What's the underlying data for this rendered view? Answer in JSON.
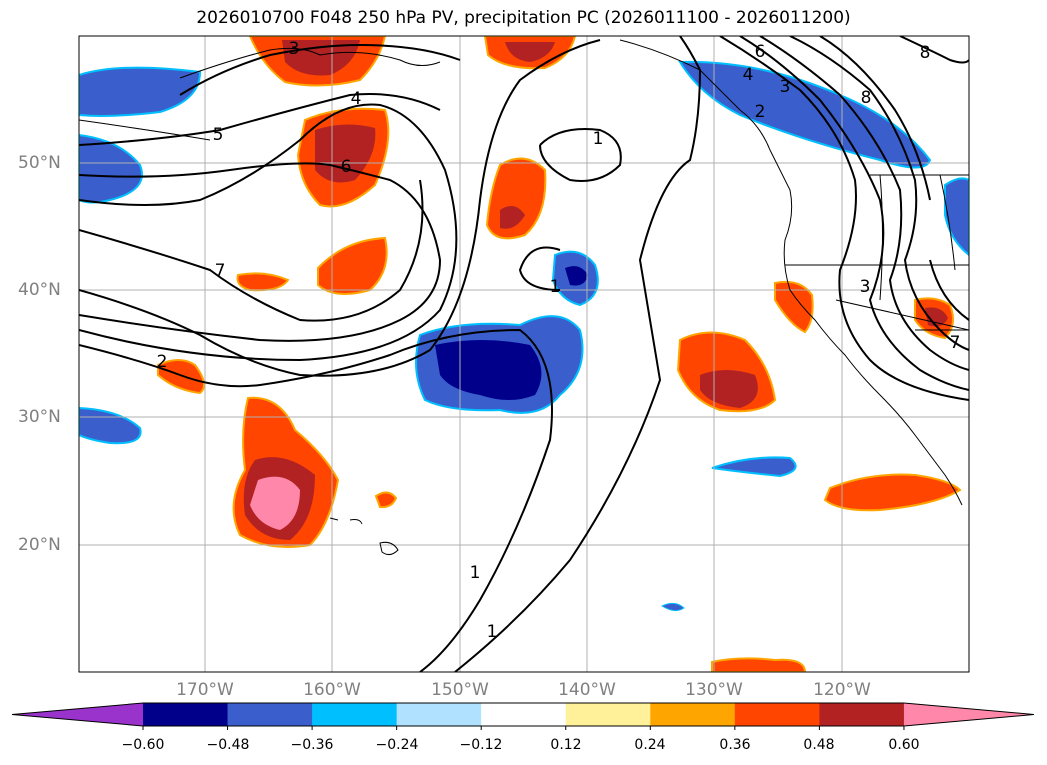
{
  "title": "2026010700 F048 250 hPa PV, precipitation PC (2026011100 - 2026011200)",
  "lat_labels": [
    "50°N",
    "40°N",
    "30°N",
    "20°N"
  ],
  "lon_labels": [
    "170°W",
    "160°W",
    "150°W",
    "140°W",
    "130°W",
    "120°W"
  ],
  "colorbar": {
    "ticks": [
      "−0.60",
      "−0.48",
      "−0.36",
      "−0.24",
      "−0.12",
      "0.12",
      "0.24",
      "0.36",
      "0.48",
      "0.60"
    ],
    "colors": [
      "#9933cc",
      "#00008b",
      "#3a5fcd",
      "#00bfff",
      "#b0e2ff",
      "#ffffff",
      "#fff09a",
      "#ffa500",
      "#ff4500",
      "#b22222",
      "#ff88aa"
    ]
  },
  "contour_labels": [
    "3",
    "4",
    "5",
    "6",
    "7",
    "2",
    "1",
    "1",
    "1",
    "1",
    "6",
    "4",
    "3",
    "2",
    "8",
    "8",
    "3",
    "7"
  ],
  "colors": {
    "land_outline": "#000000",
    "grid": "#b0b0b0",
    "pv_contour": "#000000"
  }
}
